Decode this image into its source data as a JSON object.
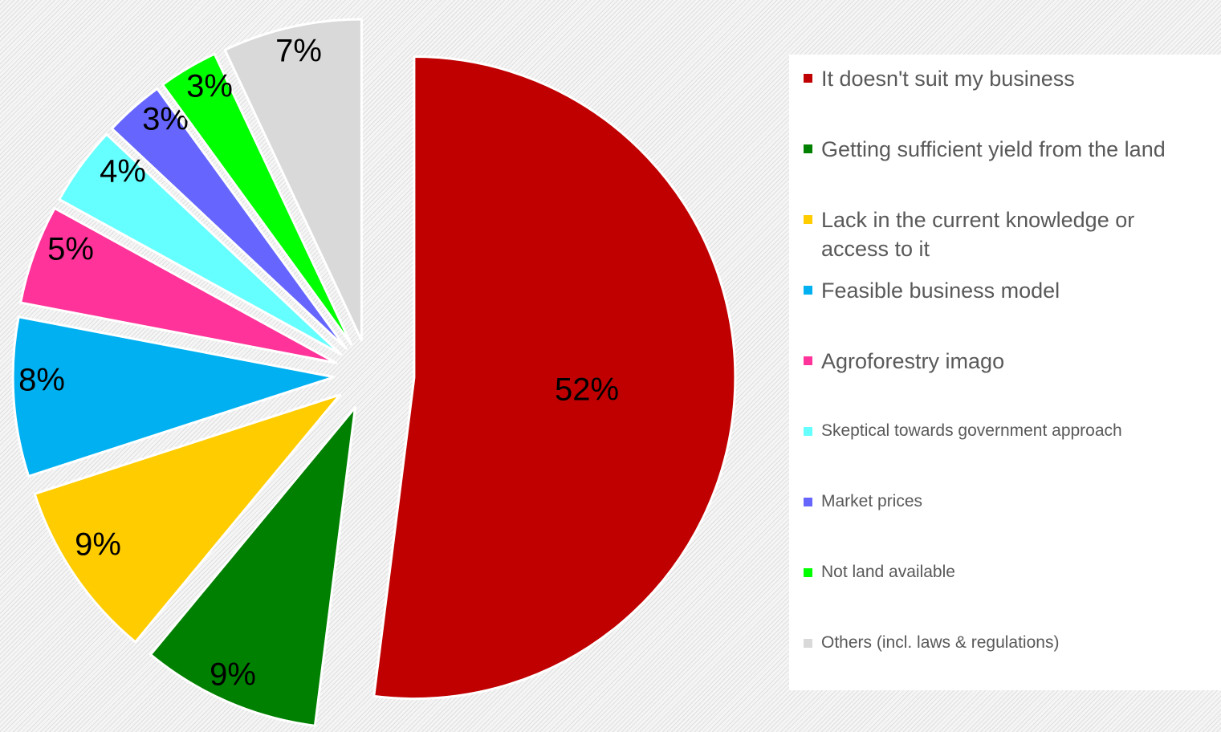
{
  "chart_data": {
    "type": "pie",
    "exploded": true,
    "legend_position": "right",
    "slices": [
      {
        "label": "It doesn't suit my business",
        "value": 52,
        "display": "52%",
        "color": "#c00000"
      },
      {
        "label": "Getting sufficient yield from the land",
        "value": 9,
        "display": "9%",
        "color": "#008000"
      },
      {
        "label": "Lack in the current knowledge or access to it",
        "value": 9,
        "display": "9%",
        "color": "#ffcc00"
      },
      {
        "label": "Feasible business model",
        "value": 8,
        "display": "8%",
        "color": "#00b0f0"
      },
      {
        "label": "Agroforestry imago",
        "value": 5,
        "display": "5%",
        "color": "#ff3399"
      },
      {
        "label": "Skeptical towards government approach",
        "value": 4,
        "display": "4%",
        "color": "#66ffff"
      },
      {
        "label": "Market prices",
        "value": 3,
        "display": "3%",
        "color": "#6666ff"
      },
      {
        "label": "Not land available",
        "value": 3,
        "display": "3%",
        "color": "#00ff00"
      },
      {
        "label": "Others (incl. laws & regulations)",
        "value": 7,
        "display": "7%",
        "color": "#d9d9d9"
      }
    ]
  }
}
